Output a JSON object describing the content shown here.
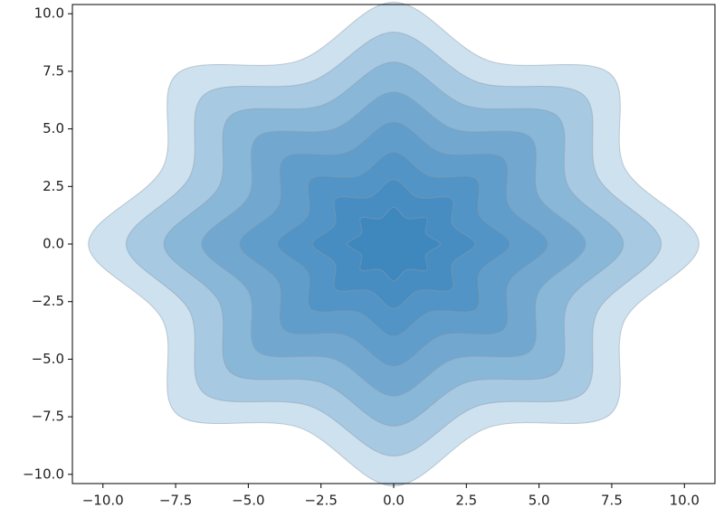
{
  "chart_data": {
    "type": "contour",
    "color": "#1f77b4",
    "alpha": 0.22,
    "edgecolor": "#8a9bab",
    "layers": [
      {
        "x": [
          10.5,
          7.95,
          7.42,
          3.29,
          0,
          -3.29,
          -7.42,
          -7.95,
          -10.5,
          -7.95,
          -7.42,
          -3.29,
          0,
          3.29,
          7.42,
          7.95
        ],
        "y": [
          0,
          3.29,
          7.42,
          7.95,
          10.5,
          7.95,
          7.42,
          3.29,
          0,
          -3.29,
          -7.42,
          -7.95,
          -10.5,
          -7.95,
          -7.42,
          -3.29
        ]
      },
      {
        "x": [
          9.2,
          7.02,
          6.5,
          2.91,
          0,
          -2.91,
          -6.5,
          -7.02,
          -9.2,
          -7.02,
          -6.5,
          -2.91,
          0,
          2.91,
          6.5,
          7.02
        ],
        "y": [
          0,
          2.91,
          6.5,
          7.02,
          9.2,
          7.02,
          6.5,
          2.91,
          0,
          -2.91,
          -6.5,
          -7.02,
          -9.2,
          -7.02,
          -6.5,
          -2.91
        ]
      },
      {
        "x": [
          7.9,
          6.01,
          5.59,
          2.49,
          0,
          -2.49,
          -5.59,
          -6.01,
          -7.9,
          -6.01,
          -5.59,
          -2.49,
          0,
          2.49,
          5.59,
          6.01
        ],
        "y": [
          0,
          2.49,
          5.59,
          6.01,
          7.9,
          6.01,
          5.59,
          2.49,
          0,
          -2.49,
          -5.59,
          -6.01,
          -7.9,
          -6.01,
          -5.59,
          -2.49
        ]
      },
      {
        "x": [
          6.6,
          4.99,
          4.67,
          2.07,
          0,
          -2.07,
          -4.67,
          -4.99,
          -6.6,
          -4.99,
          -4.67,
          -2.07,
          0,
          2.07,
          4.67,
          4.99
        ],
        "y": [
          0,
          2.07,
          4.67,
          4.99,
          6.6,
          4.99,
          4.67,
          2.07,
          0,
          -2.07,
          -4.67,
          -4.99,
          -6.6,
          -4.99,
          -4.67,
          -2.07
        ]
      },
      {
        "x": [
          5.3,
          3.97,
          3.75,
          1.65,
          0,
          -1.65,
          -3.75,
          -3.97,
          -5.3,
          -3.97,
          -3.75,
          -1.65,
          0,
          1.65,
          3.75,
          3.97
        ],
        "y": [
          0,
          1.65,
          3.75,
          3.97,
          5.3,
          3.97,
          3.75,
          1.65,
          0,
          -1.65,
          -3.75,
          -3.97,
          -5.3,
          -3.97,
          -3.75,
          -1.65
        ]
      },
      {
        "x": [
          4.0,
          2.96,
          2.83,
          1.23,
          0,
          -1.23,
          -2.83,
          -2.96,
          -4.0,
          -2.96,
          -2.83,
          -1.23,
          0,
          1.23,
          2.83,
          2.96
        ],
        "y": [
          0,
          1.23,
          2.83,
          2.96,
          4.0,
          2.96,
          2.83,
          1.23,
          0,
          -1.23,
          -2.83,
          -2.96,
          -4.0,
          -2.96,
          -2.83,
          -1.23
        ]
      },
      {
        "x": [
          2.8,
          2.03,
          1.98,
          0.84,
          0,
          -0.84,
          -1.98,
          -2.03,
          -2.8,
          -2.03,
          -1.98,
          -0.84,
          0,
          0.84,
          1.98,
          2.03
        ],
        "y": [
          0,
          0.84,
          1.98,
          2.03,
          2.8,
          2.03,
          1.98,
          0.84,
          0,
          -0.84,
          -1.98,
          -2.03,
          -2.8,
          -2.03,
          -1.98,
          -0.84
        ]
      },
      {
        "x": [
          1.6,
          1.11,
          1.13,
          0.46,
          0,
          -0.46,
          -1.13,
          -1.11,
          -1.6,
          -1.11,
          -1.13,
          -0.46,
          0,
          0.46,
          1.13,
          1.11
        ],
        "y": [
          0,
          0.46,
          1.13,
          1.11,
          1.6,
          1.11,
          1.13,
          0.46,
          0,
          -0.46,
          -1.13,
          -1.11,
          -1.6,
          -1.11,
          -1.13,
          -0.46
        ]
      }
    ],
    "xlim": [
      -11.05,
      11.05
    ],
    "ylim": [
      -10.4,
      10.4
    ],
    "xticks": [
      {
        "value": -10,
        "label": "−10.0"
      },
      {
        "value": -7.5,
        "label": "−7.5"
      },
      {
        "value": -5,
        "label": "−5.0"
      },
      {
        "value": -2.5,
        "label": "−2.5"
      },
      {
        "value": 0,
        "label": "0.0"
      },
      {
        "value": 2.5,
        "label": "2.5"
      },
      {
        "value": 5,
        "label": "5.0"
      },
      {
        "value": 7.5,
        "label": "7.5"
      },
      {
        "value": 10,
        "label": "10.0"
      }
    ],
    "yticks": [
      {
        "value": -10,
        "label": "−10.0"
      },
      {
        "value": -7.5,
        "label": "−7.5"
      },
      {
        "value": -5,
        "label": "−5.0"
      },
      {
        "value": -2.5,
        "label": "−2.5"
      },
      {
        "value": 0,
        "label": "0.0"
      },
      {
        "value": 2.5,
        "label": "2.5"
      },
      {
        "value": 5,
        "label": "5.0"
      },
      {
        "value": 7.5,
        "label": "7.5"
      },
      {
        "value": 10,
        "label": "10.0"
      }
    ],
    "grid": false
  }
}
